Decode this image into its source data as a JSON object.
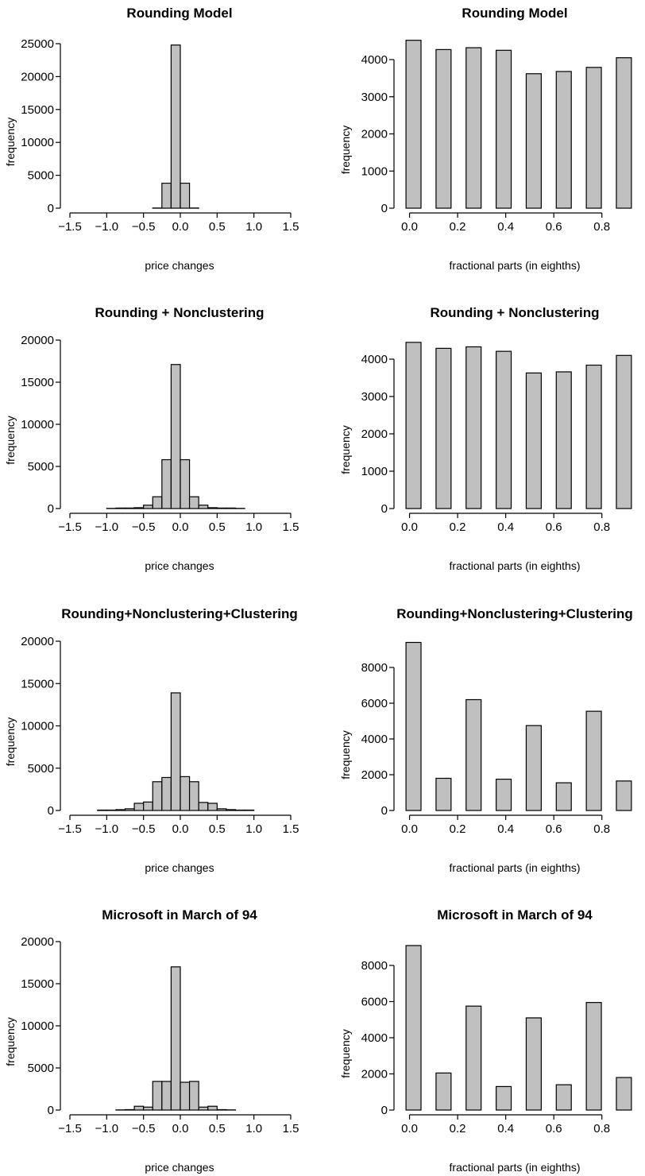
{
  "style": {
    "bar_fill": "#c0c0c0",
    "bar_stroke": "#000000",
    "background": "#ffffff"
  },
  "chart_data": [
    {
      "type": "bar",
      "title": "Rounding Model",
      "xlabel": "price changes",
      "ylabel": "frequency",
      "xlim": [
        -1.5,
        1.5
      ],
      "ylim": [
        0,
        25000
      ],
      "xticks": [
        "−1.5",
        "−1.0",
        "−0.5",
        "0.0",
        "0.5",
        "1.0",
        "1.5"
      ],
      "yticks": [
        "0",
        "5000",
        "10000",
        "15000",
        "20000",
        "25000"
      ],
      "bin_width": 0.125,
      "bins": [
        {
          "x": -1.4375,
          "value": 0
        },
        {
          "x": -1.3125,
          "value": 0
        },
        {
          "x": -1.1875,
          "value": 0
        },
        {
          "x": -1.0625,
          "value": 0
        },
        {
          "x": -0.9375,
          "value": 0
        },
        {
          "x": -0.8125,
          "value": 0
        },
        {
          "x": -0.6875,
          "value": 0
        },
        {
          "x": -0.5625,
          "value": 0
        },
        {
          "x": -0.4375,
          "value": 0
        },
        {
          "x": -0.3125,
          "value": 30
        },
        {
          "x": -0.1875,
          "value": 3800
        },
        {
          "x": -0.0625,
          "value": 24800
        },
        {
          "x": 0.0625,
          "value": 3800
        },
        {
          "x": 0.1875,
          "value": 30
        },
        {
          "x": 0.3125,
          "value": 0
        },
        {
          "x": 0.4375,
          "value": 0
        },
        {
          "x": 0.5625,
          "value": 0
        },
        {
          "x": 0.6875,
          "value": 0
        },
        {
          "x": 0.8125,
          "value": 0
        },
        {
          "x": 0.9375,
          "value": 0
        },
        {
          "x": 1.0625,
          "value": 0
        },
        {
          "x": 1.1875,
          "value": 0
        },
        {
          "x": 1.3125,
          "value": 0
        },
        {
          "x": 1.4375,
          "value": 0
        }
      ]
    },
    {
      "type": "bar",
      "title": "Rounding Model",
      "xlabel": "fractional parts (in eighths)",
      "ylabel": "frequency",
      "xlim": [
        -0.025,
        0.9
      ],
      "ylim": [
        0,
        4500
      ],
      "xticks": [
        "0.0",
        "0.2",
        "0.4",
        "0.6",
        "0.8"
      ],
      "yticks": [
        "0",
        "1000",
        "2000",
        "3000",
        "4000"
      ],
      "categories": [
        "0",
        "1/8",
        "2/8",
        "3/8",
        "4/8",
        "5/8",
        "6/8",
        "7/8"
      ],
      "values": [
        4520,
        4270,
        4320,
        4250,
        3620,
        3680,
        3790,
        4050
      ]
    },
    {
      "type": "bar",
      "title": "Rounding + Nonclustering",
      "xlabel": "price changes",
      "ylabel": "frequency",
      "xlim": [
        -1.5,
        1.5
      ],
      "ylim": [
        0,
        20000
      ],
      "xticks": [
        "−1.5",
        "−1.0",
        "−0.5",
        "0.0",
        "0.5",
        "1.0",
        "1.5"
      ],
      "yticks": [
        "0",
        "5000",
        "10000",
        "15000",
        "20000"
      ],
      "bin_width": 0.125,
      "bins": [
        {
          "x": -1.4375,
          "value": 0
        },
        {
          "x": -1.3125,
          "value": 0
        },
        {
          "x": -1.1875,
          "value": 0
        },
        {
          "x": -1.0625,
          "value": 0
        },
        {
          "x": -0.9375,
          "value": 20
        },
        {
          "x": -0.8125,
          "value": 60
        },
        {
          "x": -0.6875,
          "value": 60
        },
        {
          "x": -0.5625,
          "value": 100
        },
        {
          "x": -0.4375,
          "value": 400
        },
        {
          "x": -0.3125,
          "value": 1400
        },
        {
          "x": -0.1875,
          "value": 5800
        },
        {
          "x": -0.0625,
          "value": 17100
        },
        {
          "x": 0.0625,
          "value": 5800
        },
        {
          "x": 0.1875,
          "value": 1400
        },
        {
          "x": 0.3125,
          "value": 400
        },
        {
          "x": 0.4375,
          "value": 100
        },
        {
          "x": 0.5625,
          "value": 60
        },
        {
          "x": 0.6875,
          "value": 60
        },
        {
          "x": 0.8125,
          "value": 20
        },
        {
          "x": 0.9375,
          "value": 0
        },
        {
          "x": 1.0625,
          "value": 0
        },
        {
          "x": 1.1875,
          "value": 0
        },
        {
          "x": 1.3125,
          "value": 0
        },
        {
          "x": 1.4375,
          "value": 0
        }
      ]
    },
    {
      "type": "bar",
      "title": "Rounding + Nonclustering",
      "xlabel": "fractional parts (in eighths)",
      "ylabel": "frequency",
      "xlim": [
        -0.025,
        0.9
      ],
      "ylim": [
        0,
        4500
      ],
      "xticks": [
        "0.0",
        "0.2",
        "0.4",
        "0.6",
        "0.8"
      ],
      "yticks": [
        "0",
        "1000",
        "2000",
        "3000",
        "4000"
      ],
      "categories": [
        "0",
        "1/8",
        "2/8",
        "3/8",
        "4/8",
        "5/8",
        "6/8",
        "7/8"
      ],
      "values": [
        4450,
        4290,
        4330,
        4210,
        3630,
        3660,
        3840,
        4100
      ]
    },
    {
      "type": "bar",
      "title": "Rounding+Nonclustering+Clustering",
      "xlabel": "price changes",
      "ylabel": "frequency",
      "xlim": [
        -1.5,
        1.5
      ],
      "ylim": [
        0,
        20000
      ],
      "xticks": [
        "−1.5",
        "−1.0",
        "−0.5",
        "0.0",
        "0.5",
        "1.0",
        "1.5"
      ],
      "yticks": [
        "0",
        "5000",
        "10000",
        "15000",
        "20000"
      ],
      "bin_width": 0.125,
      "bins": [
        {
          "x": -1.4375,
          "value": 0
        },
        {
          "x": -1.3125,
          "value": 0
        },
        {
          "x": -1.1875,
          "value": 0
        },
        {
          "x": -1.0625,
          "value": 50
        },
        {
          "x": -0.9375,
          "value": 50
        },
        {
          "x": -0.8125,
          "value": 100
        },
        {
          "x": -0.6875,
          "value": 200
        },
        {
          "x": -0.5625,
          "value": 850
        },
        {
          "x": -0.4375,
          "value": 1000
        },
        {
          "x": -0.3125,
          "value": 3400
        },
        {
          "x": -0.1875,
          "value": 3900
        },
        {
          "x": -0.0625,
          "value": 13900
        },
        {
          "x": 0.0625,
          "value": 4000
        },
        {
          "x": 0.1875,
          "value": 3400
        },
        {
          "x": 0.3125,
          "value": 950
        },
        {
          "x": 0.4375,
          "value": 850
        },
        {
          "x": 0.5625,
          "value": 200
        },
        {
          "x": 0.6875,
          "value": 100
        },
        {
          "x": 0.8125,
          "value": 50
        },
        {
          "x": 0.9375,
          "value": 50
        },
        {
          "x": 1.0625,
          "value": 0
        },
        {
          "x": 1.1875,
          "value": 0
        },
        {
          "x": 1.3125,
          "value": 0
        },
        {
          "x": 1.4375,
          "value": 0
        }
      ]
    },
    {
      "type": "bar",
      "title": "Rounding+Nonclustering+Clustering",
      "xlabel": "fractional parts (in eighths)",
      "ylabel": "frequency",
      "xlim": [
        -0.025,
        0.9
      ],
      "ylim": [
        0,
        9500
      ],
      "xticks": [
        "0.0",
        "0.2",
        "0.4",
        "0.6",
        "0.8"
      ],
      "yticks": [
        "0",
        "2000",
        "4000",
        "6000",
        "8000"
      ],
      "categories": [
        "0",
        "1/8",
        "2/8",
        "3/8",
        "4/8",
        "5/8",
        "6/8",
        "7/8"
      ],
      "values": [
        9400,
        1800,
        6200,
        1750,
        4750,
        1550,
        5550,
        1650
      ]
    },
    {
      "type": "bar",
      "title": "Microsoft in March of 94",
      "xlabel": "price changes",
      "ylabel": "frequency",
      "xlim": [
        -1.5,
        1.5
      ],
      "ylim": [
        0,
        20000
      ],
      "xticks": [
        "−1.5",
        "−1.0",
        "−0.5",
        "0.0",
        "0.5",
        "1.0",
        "1.5"
      ],
      "yticks": [
        "0",
        "5000",
        "10000",
        "15000",
        "20000"
      ],
      "bin_width": 0.125,
      "bins": [
        {
          "x": -1.4375,
          "value": 0
        },
        {
          "x": -1.3125,
          "value": 0
        },
        {
          "x": -1.1875,
          "value": 0
        },
        {
          "x": -1.0625,
          "value": 0
        },
        {
          "x": -0.9375,
          "value": 0
        },
        {
          "x": -0.8125,
          "value": 20
        },
        {
          "x": -0.6875,
          "value": 50
        },
        {
          "x": -0.5625,
          "value": 450
        },
        {
          "x": -0.4375,
          "value": 350
        },
        {
          "x": -0.3125,
          "value": 3400
        },
        {
          "x": -0.1875,
          "value": 3400
        },
        {
          "x": -0.0625,
          "value": 17000
        },
        {
          "x": 0.0625,
          "value": 3300
        },
        {
          "x": 0.1875,
          "value": 3400
        },
        {
          "x": 0.3125,
          "value": 350
        },
        {
          "x": 0.4375,
          "value": 450
        },
        {
          "x": 0.5625,
          "value": 50
        },
        {
          "x": 0.6875,
          "value": 20
        },
        {
          "x": 0.8125,
          "value": 0
        },
        {
          "x": 0.9375,
          "value": 0
        },
        {
          "x": 1.0625,
          "value": 0
        },
        {
          "x": 1.1875,
          "value": 0
        },
        {
          "x": 1.3125,
          "value": 0
        },
        {
          "x": 1.4375,
          "value": 0
        }
      ]
    },
    {
      "type": "bar",
      "title": "Microsoft in March of 94",
      "xlabel": "fractional parts (in eighths)",
      "ylabel": "frequency",
      "xlim": [
        -0.025,
        0.9
      ],
      "ylim": [
        0,
        9500
      ],
      "xticks": [
        "0.0",
        "0.2",
        "0.4",
        "0.6",
        "0.8"
      ],
      "yticks": [
        "0",
        "2000",
        "4000",
        "6000",
        "8000"
      ],
      "categories": [
        "0",
        "1/8",
        "2/8",
        "3/8",
        "4/8",
        "5/8",
        "6/8",
        "7/8"
      ],
      "values": [
        9100,
        2050,
        5750,
        1300,
        5100,
        1400,
        5950,
        1800
      ]
    }
  ]
}
